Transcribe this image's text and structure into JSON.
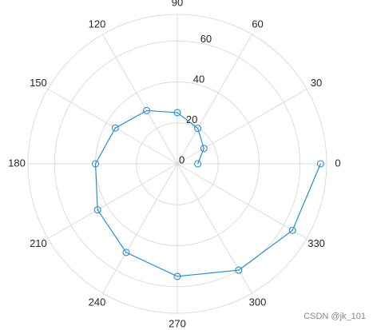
{
  "chart_data": {
    "type": "polar",
    "theta": [
      0,
      30,
      60,
      90,
      120,
      150,
      180,
      210,
      240,
      270,
      300,
      330,
      360
    ],
    "values": [
      10,
      15,
      20,
      25,
      30,
      35,
      40,
      45,
      50,
      55,
      60,
      65,
      70
    ],
    "color": "#2f8ccb",
    "rlim": [
      0,
      73
    ],
    "rticks": [
      0,
      20,
      40,
      60
    ],
    "thetaticks": [
      0,
      30,
      60,
      90,
      120,
      150,
      180,
      210,
      240,
      270,
      300,
      330
    ],
    "grid": true
  },
  "watermark": "CSDN @jk_101"
}
